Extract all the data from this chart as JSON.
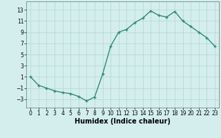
{
  "x": [
    0,
    1,
    2,
    3,
    4,
    5,
    6,
    7,
    8,
    9,
    10,
    11,
    12,
    13,
    14,
    15,
    16,
    17,
    18,
    19,
    20,
    21,
    22,
    23
  ],
  "y": [
    1.0,
    -0.5,
    -1.0,
    -1.5,
    -1.8,
    -2.0,
    -2.5,
    -3.3,
    -2.6,
    1.5,
    6.5,
    9.0,
    9.5,
    10.7,
    11.5,
    12.8,
    12.0,
    11.7,
    12.7,
    11.0,
    10.0,
    9.0,
    8.0,
    6.5
  ],
  "line_color": "#2e8b6e",
  "marker": "+",
  "marker_size": 3,
  "marker_linewidth": 1.0,
  "line_width": 1.0,
  "bg_color": "#d4eeee",
  "grid_color": "#b8d8d8",
  "xlabel": "Humidex (Indice chaleur)",
  "xlabel_fontsize": 7,
  "ylim": [
    -4.5,
    14.5
  ],
  "xlim": [
    -0.5,
    23.5
  ],
  "yticks": [
    -3,
    -1,
    1,
    3,
    5,
    7,
    9,
    11,
    13
  ],
  "xtick_labels": [
    "0",
    "1",
    "2",
    "3",
    "4",
    "5",
    "6",
    "7",
    "8",
    "9",
    "10",
    "11",
    "12",
    "13",
    "14",
    "15",
    "16",
    "17",
    "18",
    "19",
    "20",
    "21",
    "22",
    "23"
  ],
  "tick_fontsize": 5.5,
  "ylabel_fontsize": 5.5
}
